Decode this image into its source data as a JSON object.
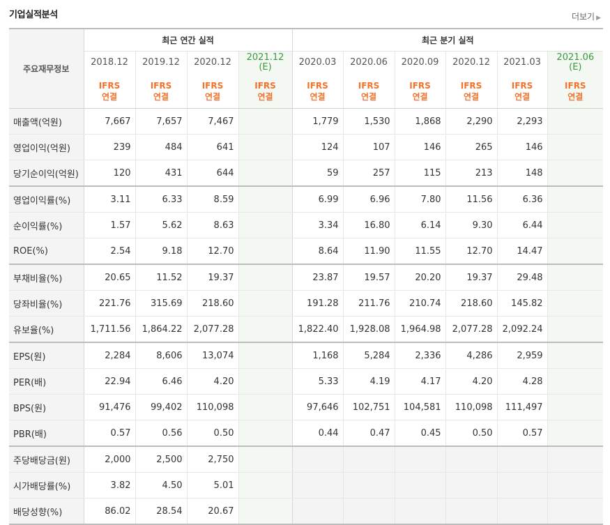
{
  "title": "기업실적분석",
  "more_label": "더보기",
  "header": {
    "row_label": "주요재무정보",
    "annual_group": "최근 연간 실적",
    "quarter_group": "최근 분기 실적",
    "annual_periods": [
      "2018.12",
      "2019.12",
      "2020.12",
      "2021.12"
    ],
    "annual_est_suffix": "(E)",
    "quarter_periods": [
      "2020.03",
      "2020.06",
      "2020.09",
      "2020.12",
      "2021.03",
      "2021.06"
    ],
    "quarter_est_suffix": "(E)",
    "ifrs_line1": "IFRS",
    "ifrs_line2": "연결"
  },
  "rows": [
    {
      "label": "매출액(억원)",
      "annual": [
        "7,667",
        "7,657",
        "7,467",
        ""
      ],
      "quarter": [
        "1,779",
        "1,530",
        "1,868",
        "2,290",
        "2,293",
        ""
      ]
    },
    {
      "label": "영업이익(억원)",
      "annual": [
        "239",
        "484",
        "641",
        ""
      ],
      "quarter": [
        "124",
        "107",
        "146",
        "265",
        "146",
        ""
      ]
    },
    {
      "label": "당기순이익(억원)",
      "annual": [
        "120",
        "431",
        "644",
        ""
      ],
      "quarter": [
        "59",
        "257",
        "115",
        "213",
        "148",
        ""
      ]
    },
    {
      "label": "영업이익률(%)",
      "annual": [
        "3.11",
        "6.33",
        "8.59",
        ""
      ],
      "quarter": [
        "6.99",
        "6.96",
        "7.80",
        "11.56",
        "6.36",
        ""
      ]
    },
    {
      "label": "순이익률(%)",
      "annual": [
        "1.57",
        "5.62",
        "8.63",
        ""
      ],
      "quarter": [
        "3.34",
        "16.80",
        "6.14",
        "9.30",
        "6.44",
        ""
      ]
    },
    {
      "label": "ROE(%)",
      "annual": [
        "2.54",
        "9.18",
        "12.70",
        ""
      ],
      "quarter": [
        "8.64",
        "11.90",
        "11.55",
        "12.70",
        "14.47",
        ""
      ]
    },
    {
      "label": "부채비율(%)",
      "annual": [
        "20.65",
        "11.52",
        "19.37",
        ""
      ],
      "quarter": [
        "23.87",
        "19.57",
        "20.20",
        "19.37",
        "29.48",
        ""
      ]
    },
    {
      "label": "당좌비율(%)",
      "annual": [
        "221.76",
        "315.69",
        "218.60",
        ""
      ],
      "quarter": [
        "191.28",
        "211.76",
        "210.74",
        "218.60",
        "145.82",
        ""
      ]
    },
    {
      "label": "유보율(%)",
      "annual": [
        "1,711.56",
        "1,864.22",
        "2,077.28",
        ""
      ],
      "quarter": [
        "1,822.40",
        "1,928.08",
        "1,964.98",
        "2,077.28",
        "2,092.24",
        ""
      ]
    },
    {
      "label": "EPS(원)",
      "annual": [
        "2,284",
        "8,606",
        "13,074",
        ""
      ],
      "quarter": [
        "1,168",
        "5,284",
        "2,336",
        "4,286",
        "2,959",
        ""
      ]
    },
    {
      "label": "PER(배)",
      "annual": [
        "22.94",
        "6.46",
        "4.20",
        ""
      ],
      "quarter": [
        "5.33",
        "4.19",
        "4.17",
        "4.20",
        "4.28",
        ""
      ]
    },
    {
      "label": "BPS(원)",
      "annual": [
        "91,476",
        "99,402",
        "110,098",
        ""
      ],
      "quarter": [
        "97,646",
        "102,751",
        "104,581",
        "110,098",
        "111,497",
        ""
      ]
    },
    {
      "label": "PBR(배)",
      "annual": [
        "0.57",
        "0.56",
        "0.50",
        ""
      ],
      "quarter": [
        "0.44",
        "0.47",
        "0.45",
        "0.50",
        "0.57",
        ""
      ]
    },
    {
      "label": "주당배당금(원)",
      "annual": [
        "2,000",
        "2,500",
        "2,750",
        ""
      ],
      "quarter": [
        "",
        "",
        "",
        "",
        "",
        ""
      ]
    },
    {
      "label": "시가배당률(%)",
      "annual": [
        "3.82",
        "4.50",
        "5.01",
        ""
      ],
      "quarter": [
        "",
        "",
        "",
        "",
        "",
        ""
      ]
    },
    {
      "label": "배당성향(%)",
      "annual": [
        "86.02",
        "28.54",
        "20.67",
        ""
      ],
      "quarter": [
        "",
        "",
        "",
        "",
        "",
        ""
      ]
    }
  ]
}
